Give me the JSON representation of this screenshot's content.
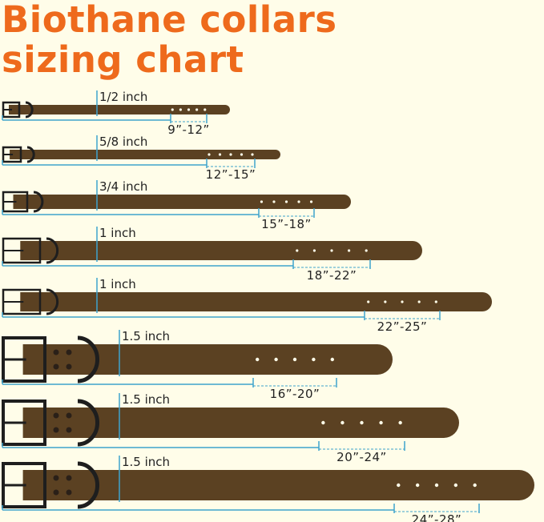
{
  "title": {
    "line1": "Biothane collars",
    "line2": "sizing chart"
  },
  "colors": {
    "title": "#ee6a1c",
    "strap": "#5b4122",
    "hardware": "#1e1e1e",
    "measure": "#3ea3cc",
    "background": "#fffde9"
  },
  "collars": [
    {
      "width": "1/2 inch",
      "size": "9”-12”"
    },
    {
      "width": "5/8 inch",
      "size": "12”-15”"
    },
    {
      "width": "3/4 inch",
      "size": "15”-18”"
    },
    {
      "width": "1 inch",
      "size": "18”-22”"
    },
    {
      "width": "1 inch",
      "size": "22”-25”"
    },
    {
      "width": "1.5 inch",
      "size": "16”-20”"
    },
    {
      "width": "1.5 inch",
      "size": "20”-24”"
    },
    {
      "width": "1.5 inch",
      "size": "24”-28”"
    }
  ]
}
